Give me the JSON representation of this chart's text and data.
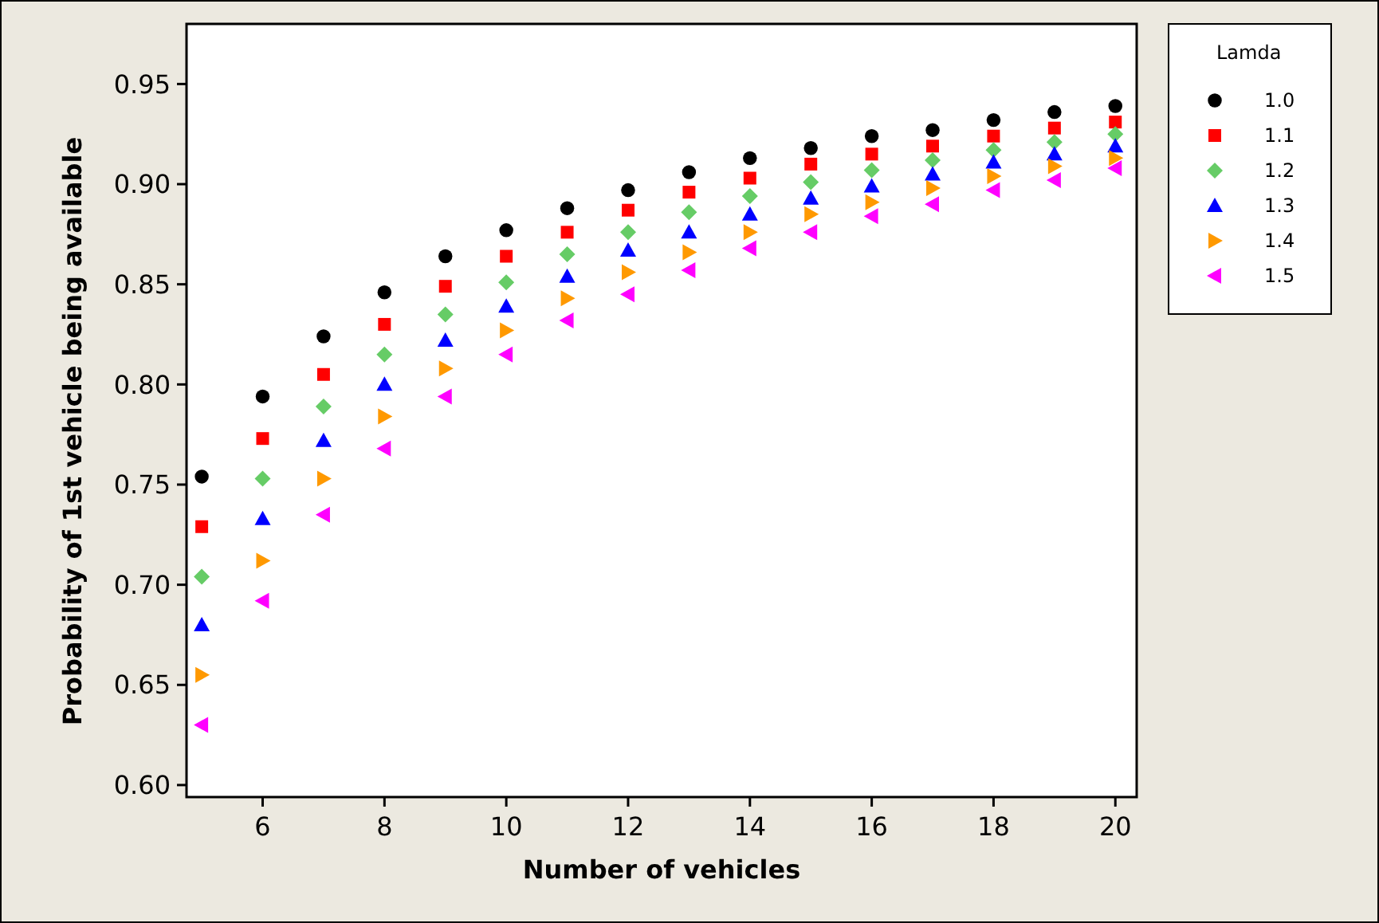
{
  "chart_data": {
    "type": "scatter",
    "xlabel": "Number of vehicles",
    "ylabel": "Probability of 1st vehicle being available",
    "legend_title": "Lamda",
    "legend": "right",
    "x": [
      5,
      6,
      7,
      8,
      9,
      10,
      11,
      12,
      13,
      14,
      15,
      16,
      17,
      18,
      19,
      20
    ],
    "xlim": [
      4.75,
      20.35
    ],
    "xticks": [
      6,
      8,
      10,
      12,
      14,
      16,
      18,
      20
    ],
    "ylim": [
      0.594,
      0.98
    ],
    "yticks": [
      {
        "value": 0.6,
        "label": "0.60"
      },
      0.65,
      {
        "value": 0.7,
        "label": "0.70"
      },
      0.75,
      {
        "value": 0.8,
        "label": "0.80"
      },
      0.85,
      {
        "value": 0.9,
        "label": "0.90"
      },
      0.95
    ],
    "series": [
      {
        "name": "1.0",
        "color": "#000000",
        "marker": "circle",
        "values": [
          0.754,
          0.794,
          0.824,
          0.846,
          0.864,
          0.877,
          0.888,
          0.897,
          0.906,
          0.913,
          0.918,
          0.924,
          0.927,
          0.932,
          0.936,
          0.939
        ]
      },
      {
        "name": "1.1",
        "color": "#ff0000",
        "marker": "square",
        "values": [
          0.729,
          0.773,
          0.805,
          0.83,
          0.849,
          0.864,
          0.876,
          0.887,
          0.896,
          0.903,
          0.91,
          0.915,
          0.919,
          0.924,
          0.928,
          0.931
        ]
      },
      {
        "name": "1.2",
        "color": "#66cc66",
        "marker": "diamond",
        "values": [
          0.704,
          0.753,
          0.789,
          0.815,
          0.835,
          0.851,
          0.865,
          0.876,
          0.886,
          0.894,
          0.901,
          0.907,
          0.912,
          0.917,
          0.921,
          0.925
        ]
      },
      {
        "name": "1.3",
        "color": "#0000ff",
        "marker": "triangle",
        "values": [
          0.68,
          0.733,
          0.772,
          0.8,
          0.822,
          0.839,
          0.854,
          0.867,
          0.876,
          0.885,
          0.893,
          0.899,
          0.905,
          0.911,
          0.915,
          0.919
        ]
      },
      {
        "name": "1.4",
        "color": "#ff9900",
        "marker": "triangle-right",
        "values": [
          0.655,
          0.712,
          0.753,
          0.784,
          0.808,
          0.827,
          0.843,
          0.856,
          0.866,
          0.876,
          0.885,
          0.891,
          0.898,
          0.904,
          0.909,
          0.913
        ]
      },
      {
        "name": "1.5",
        "color": "#ff00ff",
        "marker": "triangle-left",
        "values": [
          0.63,
          0.692,
          0.735,
          0.768,
          0.794,
          0.815,
          0.832,
          0.845,
          0.857,
          0.868,
          0.876,
          0.884,
          0.89,
          0.897,
          0.902,
          0.908
        ]
      }
    ]
  }
}
